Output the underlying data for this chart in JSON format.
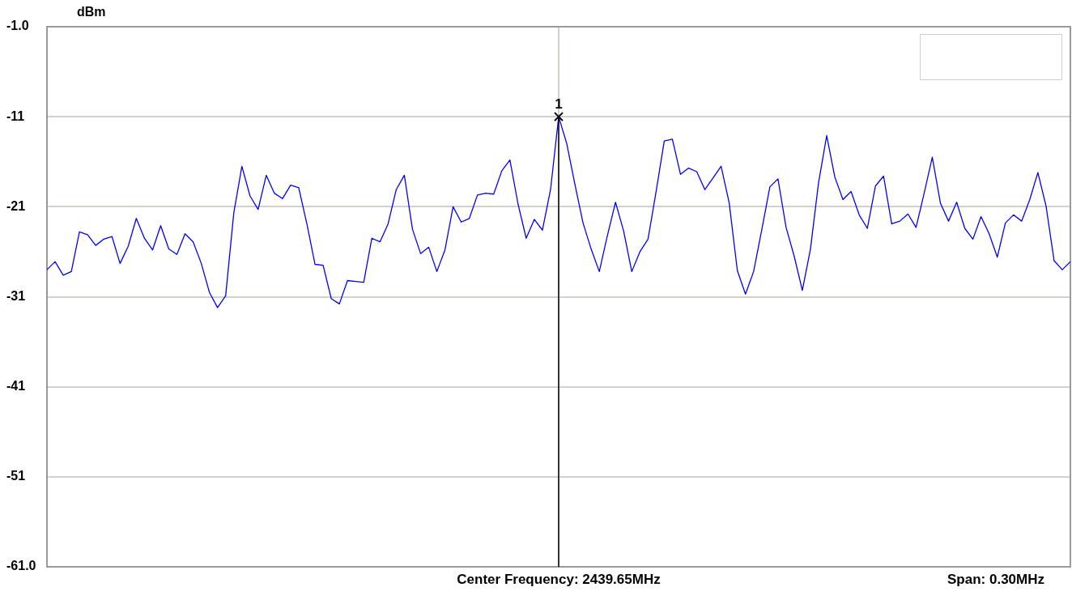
{
  "chart_data": {
    "type": "line",
    "ylabel": "dBm",
    "annotations": [
      "Center Frequency: 2439.65MHz",
      "Span: 0.30MHz",
      {
        "text": "1",
        "y": -11
      }
    ],
    "categories": [
      null,
      null,
      null,
      null,
      null,
      null,
      null,
      null,
      null,
      null,
      null,
      null,
      null,
      null,
      null,
      null,
      null,
      null,
      null,
      null,
      null,
      null,
      null,
      null,
      null,
      null,
      null,
      null,
      null,
      null,
      null,
      null,
      null,
      null,
      null,
      null,
      null,
      null,
      null,
      null,
      null,
      null,
      null,
      null,
      null,
      null,
      null,
      null,
      null,
      null,
      null,
      null,
      null,
      null,
      null,
      null,
      null,
      null,
      null,
      null,
      null,
      null,
      null,
      null,
      null,
      null,
      null,
      null,
      null,
      null,
      null,
      null,
      null,
      null,
      null,
      null,
      null,
      null,
      null,
      null,
      null,
      null,
      null,
      null,
      null,
      null,
      null,
      null,
      null,
      null,
      null,
      null,
      null,
      null,
      null,
      null,
      null,
      null,
      null,
      null,
      null,
      null,
      null,
      null,
      null,
      null,
      null,
      null,
      null,
      null,
      null,
      null,
      null,
      null,
      null,
      null,
      null,
      null,
      null,
      null,
      null,
      null,
      null,
      null,
      null,
      null,
      null
    ],
    "ylim": [
      -61,
      -1
    ],
    "yticks": [
      {
        "value": -61,
        "label": "-61.0"
      },
      -51,
      -41,
      -31,
      -21,
      -11,
      {
        "value": -1,
        "label": "-1.0"
      }
    ],
    "tick_labels": "y",
    "grid": true,
    "legend": false,
    "marker": "none",
    "line_style": "solid",
    "series": [
      {
        "color": "#0000ff",
        "values": [
          -28.0,
          -27.1,
          -28.6,
          -28.2,
          -23.8,
          -24.1,
          -25.3,
          -24.6,
          -24.3,
          -27.3,
          -25.4,
          -22.3,
          -24.5,
          -25.8,
          -23.1,
          -25.7,
          -26.3,
          -24.0,
          -24.9,
          -27.3,
          -30.5,
          -32.2,
          -30.9,
          -21.7,
          -16.5,
          -19.8,
          -21.3,
          -17.5,
          -19.5,
          -20.1,
          -18.6,
          -18.9,
          -22.9,
          -27.4,
          -27.5,
          -31.2,
          -31.8,
          -29.2,
          -29.3,
          -29.4,
          -24.5,
          -24.9,
          -22.9,
          -19.1,
          -17.5,
          -23.5,
          -26.2,
          -25.5,
          -28.2,
          -25.8,
          -21.0,
          -22.7,
          -22.3,
          -19.7,
          -19.5,
          -19.6,
          -17.0,
          -15.8,
          -20.7,
          -24.5,
          -22.4,
          -23.6,
          -19.1,
          -11.0,
          -14.0,
          -18.5,
          -22.8,
          -25.7,
          -28.2,
          -24.2,
          -20.5,
          -23.7,
          -28.2,
          -26.0,
          -24.6,
          -19.3,
          -13.7,
          -13.5,
          -17.4,
          -16.7,
          -17.1,
          -19.1,
          -17.8,
          -16.5,
          -20.6,
          -28.1,
          -30.7,
          -28.2,
          -23.6,
          -18.8,
          -17.9,
          -23.3,
          -26.5,
          -30.3,
          -25.7,
          -18.3,
          -13.1,
          -17.7,
          -20.2,
          -19.3,
          -21.9,
          -23.4,
          -18.7,
          -17.6,
          -22.9,
          -22.6,
          -21.8,
          -23.3,
          -19.5,
          -15.5,
          -20.6,
          -22.6,
          -20.5,
          -23.4,
          -24.6,
          -22.1,
          -24.0,
          -26.6,
          -22.8,
          -21.9,
          -22.6,
          -20.2,
          -17.2,
          -20.9,
          -27.0,
          -28.0,
          -27.1
        ]
      }
    ]
  }
}
